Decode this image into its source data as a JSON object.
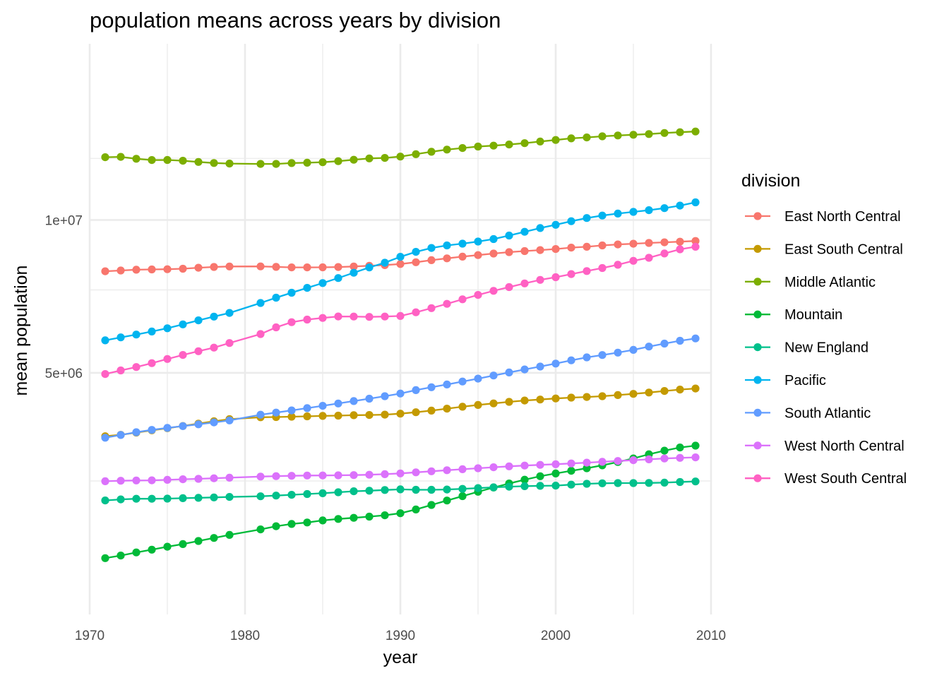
{
  "chart_data": {
    "type": "line",
    "title": "population means across years by division",
    "xlabel": "year",
    "ylabel": "mean population",
    "xlim": [
      1970,
      2010
    ],
    "ylim": [
      0,
      14000000
    ],
    "x_ticks": [
      1970,
      1980,
      1990,
      2000,
      2010
    ],
    "y_ticks": [
      {
        "value": 5000000,
        "label": "5e+06"
      },
      {
        "value": 10000000,
        "label": "1e+07"
      }
    ],
    "grid": true,
    "legend_title": "division",
    "legend_position": "right",
    "x": [
      1971,
      1972,
      1973,
      1974,
      1975,
      1976,
      1977,
      1978,
      1979,
      1981,
      1982,
      1983,
      1984,
      1985,
      1986,
      1987,
      1988,
      1989,
      1990,
      1991,
      1992,
      1993,
      1994,
      1995,
      1996,
      1997,
      1998,
      1999,
      2000,
      2001,
      2002,
      2003,
      2004,
      2005,
      2006,
      2007,
      2008,
      2009
    ],
    "series": [
      {
        "name": "East North Central",
        "color": "#F8766D",
        "values": [
          8131000,
          8158000,
          8184000,
          8195000,
          8203000,
          8219000,
          8253000,
          8280000,
          8297000,
          8301000,
          8283000,
          8265000,
          8265000,
          8269000,
          8278000,
          8297000,
          8323000,
          8345000,
          8385000,
          8447000,
          8518000,
          8584000,
          8644000,
          8700000,
          8755000,
          8806000,
          8844000,
          8880000,
          8917000,
          8968000,
          9000000,
          9048000,
          9085000,
          9112000,
          9138000,
          9163000,
          9186000,
          9213000
        ]
      },
      {
        "name": "East South Central",
        "color": "#C49A00",
        "values": [
          3430000,
          3462000,
          3512000,
          3564000,
          3612000,
          3664000,
          3719000,
          3774000,
          3824000,
          3870000,
          3874000,
          3883000,
          3892000,
          3902000,
          3908000,
          3918000,
          3924000,
          3932000,
          3955000,
          3989000,
          4030000,
          4078000,
          4125000,
          4168000,
          4207000,
          4245000,
          4278000,
          4304000,
          4330000,
          4351000,
          4368000,
          4388000,
          4416000,
          4447000,
          4481000,
          4520000,
          4558000,
          4585000
        ]
      },
      {
        "name": "Middle Atlantic",
        "color": "#7CAE00",
        "values": [
          12550000,
          12565000,
          12483000,
          12429000,
          12431000,
          12399000,
          12349000,
          12301000,
          12279000,
          12263000,
          12263000,
          12300000,
          12314000,
          12335000,
          12381000,
          12440000,
          12499000,
          12521000,
          12577000,
          12680000,
          12784000,
          12879000,
          12946000,
          13011000,
          13051000,
          13101000,
          13161000,
          13232000,
          13302000,
          13371000,
          13414000,
          13463000,
          13501000,
          13531000,
          13565000,
          13611000,
          13646000,
          13677000
        ]
      },
      {
        "name": "Mountain",
        "color": "#00BA38",
        "values": [
          1240000,
          1275000,
          1318000,
          1357000,
          1399000,
          1436000,
          1482000,
          1527000,
          1573000,
          1658000,
          1708000,
          1744000,
          1768000,
          1801000,
          1825000,
          1843000,
          1863000,
          1885000,
          1920000,
          1983000,
          2061000,
          2139000,
          2217000,
          2297000,
          2375000,
          2451000,
          2524000,
          2591000,
          2645000,
          2698000,
          2750000,
          2808000,
          2875000,
          2950000,
          3037000,
          3114000,
          3183000,
          3222000
        ]
      },
      {
        "name": "New England",
        "color": "#00C08B",
        "values": [
          2140000,
          2159000,
          2171000,
          2171000,
          2173000,
          2180000,
          2187000,
          2195000,
          2203000,
          2215000,
          2228000,
          2242000,
          2256000,
          2270000,
          2288000,
          2306000,
          2317000,
          2330000,
          2341000,
          2334000,
          2333000,
          2339000,
          2350000,
          2365000,
          2380000,
          2391000,
          2401000,
          2407000,
          2411000,
          2430000,
          2446000,
          2455000,
          2460000,
          2459000,
          2462000,
          2468000,
          2479000,
          2490000
        ]
      },
      {
        "name": "Pacific",
        "color": "#00B4EF",
        "values": [
          5919000,
          6008000,
          6092000,
          6182000,
          6281000,
          6399000,
          6523000,
          6639000,
          6755000,
          7073000,
          7244000,
          7406000,
          7568000,
          7728000,
          7898000,
          8080000,
          8263000,
          8430000,
          8639000,
          8815000,
          8957000,
          9048000,
          9114000,
          9191000,
          9281000,
          9413000,
          9553000,
          9693000,
          9816000,
          9954000,
          10075000,
          10170000,
          10247000,
          10313000,
          10380000,
          10460000,
          10560000,
          10687000
        ]
      },
      {
        "name": "South Atlantic",
        "color": "#619CFF",
        "values": [
          3397000,
          3459000,
          3521000,
          3574000,
          3619000,
          3662000,
          3702000,
          3748000,
          3794000,
          3930000,
          3982000,
          4035000,
          4090000,
          4146000,
          4205000,
          4265000,
          4325000,
          4388000,
          4456000,
          4543000,
          4617000,
          4690000,
          4768000,
          4845000,
          4929000,
          5011000,
          5092000,
          5172000,
          5254000,
          5346000,
          5428000,
          5495000,
          5562000,
          5642000,
          5737000,
          5825000,
          5907000,
          5977000
        ]
      },
      {
        "name": "West North Central",
        "color": "#DB72FB",
        "values": [
          2494000,
          2504000,
          2509000,
          2512000,
          2521000,
          2533000,
          2541000,
          2552000,
          2563000,
          2584000,
          2593000,
          2600000,
          2605000,
          2607000,
          2609000,
          2614000,
          2621000,
          2631000,
          2647000,
          2667000,
          2689000,
          2710000,
          2730000,
          2749000,
          2769000,
          2788000,
          2804000,
          2818000,
          2831000,
          2847000,
          2862000,
          2880000,
          2897000,
          2914000,
          2931000,
          2949000,
          2962000,
          2972000
        ]
      },
      {
        "name": "West South Central",
        "color": "#FF61C3",
        "values": [
          4969000,
          5065000,
          5159000,
          5266000,
          5382000,
          5496000,
          5603000,
          5708000,
          5841000,
          6106000,
          6310000,
          6467000,
          6548000,
          6598000,
          6644000,
          6643000,
          6631000,
          6642000,
          6660000,
          6775000,
          6908000,
          7044000,
          7192000,
          7334000,
          7469000,
          7594000,
          7718000,
          7835000,
          7927000,
          8033000,
          8139000,
          8244000,
          8358000,
          8496000,
          8605000,
          8758000,
          8908000,
          9001000
        ]
      }
    ]
  }
}
